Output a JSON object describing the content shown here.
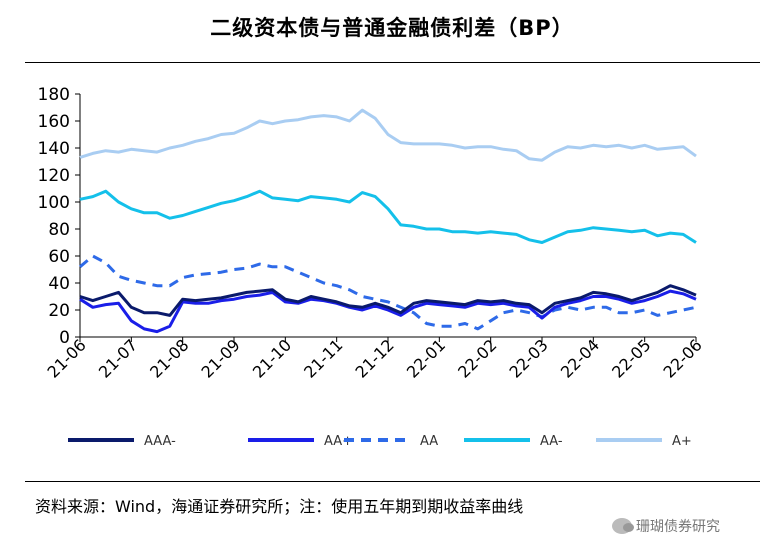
{
  "title": "二级资本债与普通金融债利差（BP）",
  "source": "资料来源：Wind，海通证券研究所；注：使用五年期到期收益率曲线",
  "watermark": "珊瑚债券研究",
  "chart_data": {
    "type": "line",
    "title": "二级资本债与普通金融债利差（BP）",
    "xlabel": "",
    "ylabel": "",
    "ylim": [
      0,
      180
    ],
    "yticks": [
      0,
      20,
      40,
      60,
      80,
      100,
      120,
      140,
      160,
      180
    ],
    "xlim": [
      "2021-06",
      "2022-06"
    ],
    "xtick_labels": [
      "21-06",
      "21-07",
      "21-08",
      "21-09",
      "21-10",
      "21-11",
      "21-12",
      "22-01",
      "22-02",
      "22-03",
      "22-04",
      "22-05",
      "22-06"
    ],
    "grid": false,
    "legend_position": "bottom",
    "series": [
      {
        "name": "AAA-",
        "color": "#0a1a6b",
        "dash": false,
        "x": [
          0,
          0.25,
          0.5,
          0.75,
          1,
          1.25,
          1.5,
          1.75,
          2,
          2.25,
          2.5,
          2.75,
          3,
          3.25,
          3.5,
          3.75,
          4,
          4.25,
          4.5,
          4.75,
          5,
          5.25,
          5.5,
          5.75,
          6,
          6.25,
          6.5,
          6.75,
          7,
          7.25,
          7.5,
          7.75,
          8,
          8.25,
          8.5,
          8.75,
          9,
          9.25,
          9.5,
          9.75,
          10,
          10.25,
          10.5,
          10.75,
          11,
          11.25,
          11.5,
          11.75,
          12
        ],
        "y": [
          30,
          27,
          30,
          33,
          22,
          18,
          18,
          16,
          28,
          27,
          28,
          29,
          31,
          33,
          34,
          35,
          28,
          26,
          30,
          28,
          26,
          23,
          22,
          25,
          22,
          18,
          25,
          27,
          26,
          25,
          24,
          27,
          26,
          27,
          25,
          24,
          18,
          25,
          27,
          29,
          33,
          32,
          30,
          27,
          30,
          33,
          38,
          35,
          31
        ]
      },
      {
        "name": "AA+",
        "color": "#1a1ee8",
        "dash": false,
        "x": [
          0,
          0.25,
          0.5,
          0.75,
          1,
          1.25,
          1.5,
          1.75,
          2,
          2.25,
          2.5,
          2.75,
          3,
          3.25,
          3.5,
          3.75,
          4,
          4.25,
          4.5,
          4.75,
          5,
          5.25,
          5.5,
          5.75,
          6,
          6.25,
          6.5,
          6.75,
          7,
          7.25,
          7.5,
          7.75,
          8,
          8.25,
          8.5,
          8.75,
          9,
          9.25,
          9.5,
          9.75,
          10,
          10.25,
          10.5,
          10.75,
          11,
          11.25,
          11.5,
          11.75,
          12
        ],
        "y": [
          28,
          22,
          24,
          25,
          12,
          6,
          4,
          8,
          26,
          25,
          25,
          27,
          28,
          30,
          31,
          33,
          26,
          25,
          28,
          27,
          25,
          22,
          20,
          23,
          20,
          16,
          22,
          25,
          24,
          23,
          22,
          25,
          24,
          25,
          23,
          22,
          14,
          22,
          25,
          27,
          30,
          30,
          28,
          25,
          27,
          30,
          34,
          32,
          28
        ]
      },
      {
        "name": "AA",
        "color": "#2e6ae8",
        "dash": true,
        "x": [
          0,
          0.25,
          0.5,
          0.75,
          1,
          1.25,
          1.5,
          1.75,
          2,
          2.25,
          2.5,
          2.75,
          3,
          3.25,
          3.5,
          3.75,
          4,
          4.25,
          4.5,
          4.75,
          5,
          5.25,
          5.5,
          5.75,
          6,
          6.25,
          6.5,
          6.75,
          7,
          7.25,
          7.5,
          7.75,
          8,
          8.25,
          8.5,
          8.75,
          9,
          9.25,
          9.5,
          9.75,
          10,
          10.25,
          10.5,
          10.75,
          11,
          11.25,
          11.5,
          11.75,
          12
        ],
        "y": [
          52,
          60,
          55,
          45,
          42,
          40,
          38,
          38,
          44,
          46,
          47,
          48,
          50,
          51,
          54,
          52,
          52,
          48,
          44,
          40,
          38,
          35,
          30,
          28,
          26,
          22,
          18,
          10,
          8,
          8,
          10,
          6,
          12,
          18,
          20,
          18,
          15,
          20,
          22,
          20,
          22,
          22,
          18,
          18,
          20,
          16,
          18,
          20,
          22
        ]
      },
      {
        "name": "AA-",
        "color": "#14c0ea",
        "dash": false,
        "x": [
          0,
          0.25,
          0.5,
          0.75,
          1,
          1.25,
          1.5,
          1.75,
          2,
          2.25,
          2.5,
          2.75,
          3,
          3.25,
          3.5,
          3.75,
          4,
          4.25,
          4.5,
          4.75,
          5,
          5.25,
          5.5,
          5.75,
          6,
          6.25,
          6.5,
          6.75,
          7,
          7.25,
          7.5,
          7.75,
          8,
          8.25,
          8.5,
          8.75,
          9,
          9.25,
          9.5,
          9.75,
          10,
          10.25,
          10.5,
          10.75,
          11,
          11.25,
          11.5,
          11.75,
          12
        ],
        "y": [
          102,
          104,
          108,
          100,
          95,
          92,
          92,
          88,
          90,
          93,
          96,
          99,
          101,
          104,
          108,
          103,
          102,
          101,
          104,
          103,
          102,
          100,
          107,
          104,
          95,
          83,
          82,
          80,
          80,
          78,
          78,
          77,
          78,
          77,
          76,
          72,
          70,
          74,
          78,
          79,
          81,
          80,
          79,
          78,
          79,
          75,
          77,
          76,
          70
        ]
      },
      {
        "name": "A+",
        "color": "#a9cdf2",
        "dash": false,
        "x": [
          0,
          0.25,
          0.5,
          0.75,
          1,
          1.25,
          1.5,
          1.75,
          2,
          2.25,
          2.5,
          2.75,
          3,
          3.25,
          3.5,
          3.75,
          4,
          4.25,
          4.5,
          4.75,
          5,
          5.25,
          5.5,
          5.75,
          6,
          6.25,
          6.5,
          6.75,
          7,
          7.25,
          7.5,
          7.75,
          8,
          8.25,
          8.5,
          8.75,
          9,
          9.25,
          9.5,
          9.75,
          10,
          10.25,
          10.5,
          10.75,
          11,
          11.25,
          11.5,
          11.75,
          12
        ],
        "y": [
          133,
          136,
          138,
          137,
          139,
          138,
          137,
          140,
          142,
          145,
          147,
          150,
          151,
          155,
          160,
          158,
          160,
          161,
          163,
          164,
          163,
          160,
          168,
          162,
          150,
          144,
          143,
          143,
          143,
          142,
          140,
          141,
          141,
          139,
          138,
          132,
          131,
          137,
          141,
          140,
          142,
          141,
          142,
          140,
          142,
          139,
          140,
          141,
          134
        ]
      }
    ]
  }
}
